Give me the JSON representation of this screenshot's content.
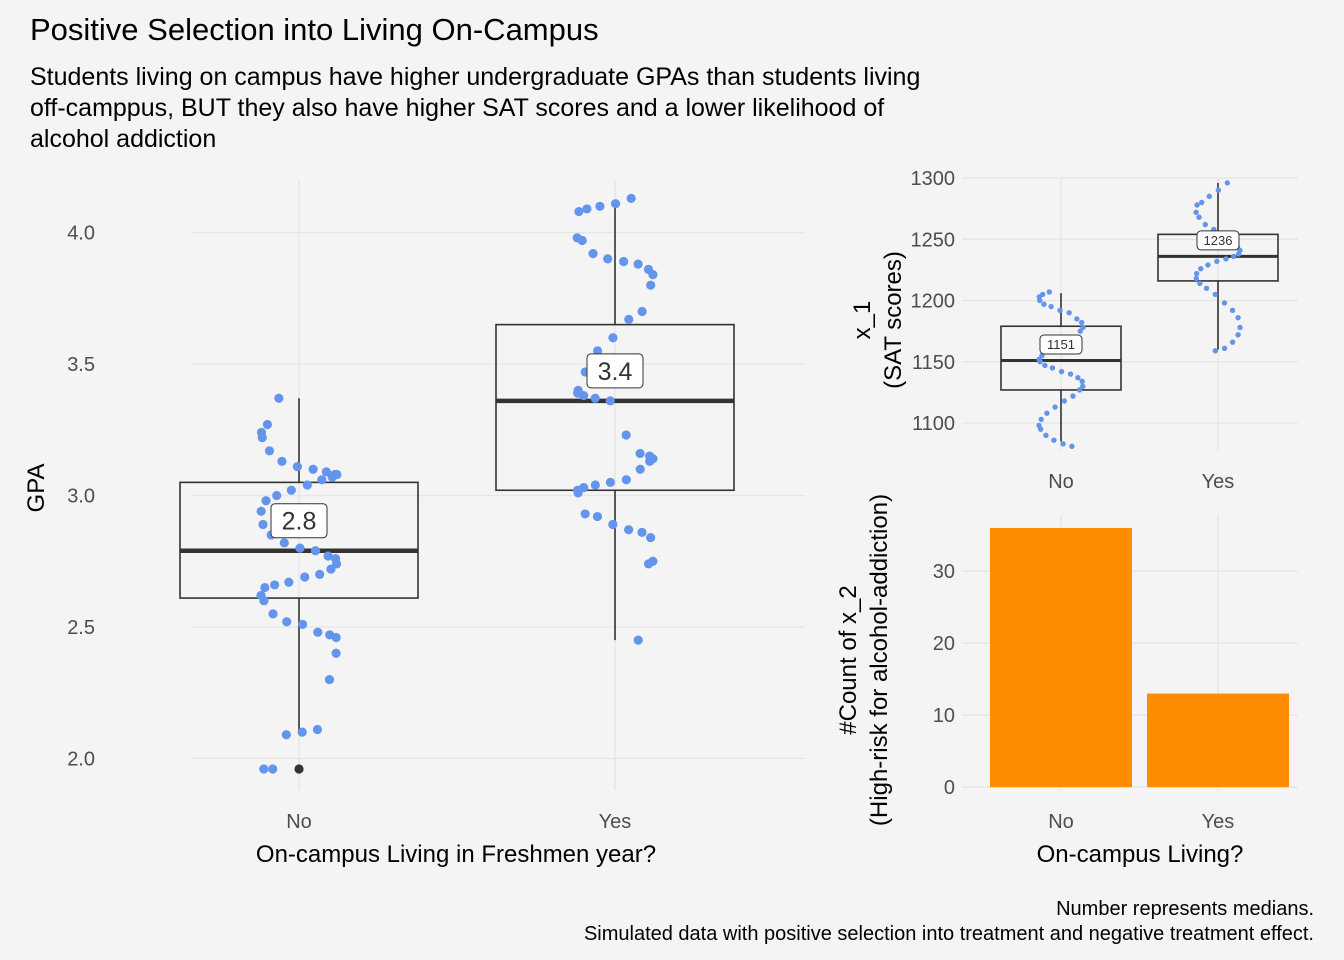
{
  "title": "Positive Selection into Living On-Campus",
  "subtitle_lines": [
    "Students living on campus have higher undergraduate GPAs than students living",
    "off-camppus, BUT they also have higher SAT scores and a lower likelihood of",
    "alcohol addiction"
  ],
  "caption_lines": [
    "Number represents medians.",
    "Simulated data with positive selection into treatment and negative treatment effect."
  ],
  "colors": {
    "points": "#6495ED",
    "bars": "#FF8C00",
    "box_line": "#333333",
    "grid": "#e6e6e6",
    "background": "#f4f4f4"
  },
  "chart_data": [
    {
      "type": "box",
      "xlabel": "On-campus Living in Freshmen year?",
      "ylabel": "GPA",
      "categories": [
        "No",
        "Yes"
      ],
      "ylim": [
        1.88,
        4.2
      ],
      "yticks": [
        2.0,
        2.5,
        3.0,
        3.5,
        4.0
      ],
      "ytick_labels": [
        "2.0",
        "2.5",
        "3.0",
        "3.5",
        "4.0"
      ],
      "boxes": [
        {
          "category": "No",
          "min": 2.1,
          "q1": 2.61,
          "median": 2.79,
          "q3": 3.05,
          "max": 3.37,
          "label": "2.8",
          "outliers": [
            1.96
          ]
        },
        {
          "category": "Yes",
          "min": 2.45,
          "q1": 3.02,
          "median": 3.36,
          "q3": 3.65,
          "max": 4.12,
          "label": "3.4",
          "outliers": []
        }
      ],
      "points": [
        {
          "category": "No",
          "values": [
            3.37,
            3.27,
            3.24,
            3.22,
            3.17,
            3.13,
            3.11,
            3.1,
            3.09,
            3.08,
            3.08,
            3.07,
            3.06,
            3.04,
            3.02,
            3.0,
            2.98,
            2.94,
            2.89,
            2.85,
            2.82,
            2.8,
            2.79,
            2.77,
            2.76,
            2.74,
            2.72,
            2.7,
            2.69,
            2.67,
            2.66,
            2.65,
            2.62,
            2.6,
            2.55,
            2.52,
            2.51,
            2.48,
            2.47,
            2.46,
            2.4,
            2.3,
            2.11,
            2.1,
            2.09,
            1.96,
            1.96
          ]
        },
        {
          "category": "Yes",
          "values": [
            4.13,
            4.11,
            4.1,
            4.09,
            4.08,
            3.98,
            3.97,
            3.92,
            3.9,
            3.89,
            3.88,
            3.86,
            3.84,
            3.8,
            3.7,
            3.67,
            3.6,
            3.55,
            3.47,
            3.4,
            3.39,
            3.38,
            3.37,
            3.36,
            3.23,
            3.16,
            3.15,
            3.14,
            3.13,
            3.1,
            3.06,
            3.05,
            3.04,
            3.03,
            3.02,
            3.01,
            2.93,
            2.92,
            2.89,
            2.87,
            2.86,
            2.84,
            2.75,
            2.74,
            2.45
          ]
        }
      ]
    },
    {
      "type": "box",
      "xlabel": "",
      "ylabel_lines": [
        "x_1",
        "(SAT scores)"
      ],
      "categories": [
        "No",
        "Yes"
      ],
      "ylim": [
        1078,
        1300
      ],
      "yticks": [
        1100,
        1150,
        1200,
        1250,
        1300
      ],
      "ytick_labels": [
        "1100",
        "1150",
        "1200",
        "1250",
        "1300"
      ],
      "boxes": [
        {
          "category": "No",
          "min": 1085,
          "q1": 1127,
          "median": 1151,
          "q3": 1179,
          "max": 1206,
          "label": "1151",
          "outliers": []
        },
        {
          "category": "Yes",
          "min": 1160,
          "q1": 1216,
          "median": 1236,
          "q3": 1254,
          "max": 1296,
          "label": "1236",
          "outliers": []
        }
      ],
      "points": [
        {
          "category": "No",
          "values": [
            1207,
            1205,
            1203,
            1200,
            1197,
            1195,
            1192,
            1190,
            1185,
            1182,
            1178,
            1175,
            1170,
            1167,
            1162,
            1158,
            1155,
            1152,
            1150,
            1147,
            1145,
            1142,
            1140,
            1137,
            1134,
            1130,
            1127,
            1122,
            1118,
            1113,
            1108,
            1103,
            1098,
            1095,
            1090,
            1086,
            1083,
            1081
          ]
        },
        {
          "category": "Yes",
          "values": [
            1296,
            1290,
            1285,
            1280,
            1278,
            1272,
            1268,
            1262,
            1258,
            1252,
            1248,
            1244,
            1241,
            1238,
            1236,
            1234,
            1232,
            1229,
            1226,
            1222,
            1218,
            1214,
            1210,
            1205,
            1198,
            1192,
            1186,
            1178,
            1172,
            1166,
            1161,
            1159
          ]
        }
      ]
    },
    {
      "type": "bar",
      "xlabel": "On-campus Living?",
      "ylabel_lines": [
        "#Count of x_2",
        "(High-risk for alcohol-addiction)"
      ],
      "categories": [
        "No",
        "Yes"
      ],
      "values": [
        36,
        13
      ],
      "ylim": [
        -0.4,
        37.8
      ],
      "yticks": [
        0,
        10,
        20,
        30
      ],
      "ytick_labels": [
        "0",
        "10",
        "20",
        "30"
      ]
    }
  ]
}
